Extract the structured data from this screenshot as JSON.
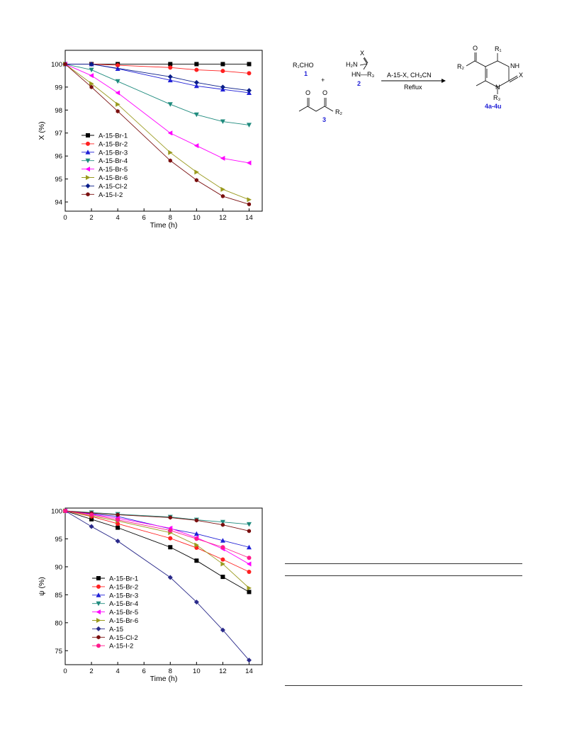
{
  "chart_data": [
    {
      "type": "line",
      "title": "",
      "xlabel": "Time (h)",
      "ylabel": "X (%)",
      "xlim": [
        0,
        15
      ],
      "ylim": [
        93.6,
        100.6
      ],
      "xticks": [
        0,
        2,
        4,
        6,
        8,
        10,
        12,
        14
      ],
      "yticks": [
        94,
        95,
        96,
        97,
        98,
        99,
        100
      ],
      "legend_position": "lower-left",
      "x": [
        0,
        2,
        4,
        8,
        10,
        12,
        14
      ],
      "series": [
        {
          "name": "A-15-Br-1",
          "color": "#000000",
          "marker": "square",
          "x": [
            0,
            2,
            4,
            8,
            10,
            12,
            14
          ],
          "values": [
            100,
            100,
            100,
            100,
            100,
            100,
            100
          ]
        },
        {
          "name": "A-15-Br-2",
          "color": "#ff2020",
          "marker": "circle",
          "x": [
            0,
            2,
            4,
            8,
            10,
            12,
            14
          ],
          "values": [
            100,
            100,
            99.95,
            99.85,
            99.75,
            99.7,
            99.6
          ]
        },
        {
          "name": "A-15-Br-3",
          "color": "#1f1fd6",
          "marker": "triangle-up",
          "x": [
            0,
            2,
            4,
            8,
            10,
            12,
            14
          ],
          "values": [
            100,
            100,
            99.8,
            99.3,
            99.05,
            98.9,
            98.75
          ]
        },
        {
          "name": "A-15-Br-4",
          "color": "#1f8b7e",
          "marker": "triangle-down",
          "x": [
            0,
            2,
            4,
            8,
            10,
            12,
            14
          ],
          "values": [
            100,
            99.75,
            99.25,
            98.25,
            97.8,
            97.5,
            97.35
          ]
        },
        {
          "name": "A-15-Br-5",
          "color": "#ff00ff",
          "marker": "triangle-left",
          "x": [
            0,
            2,
            4,
            8,
            10,
            12,
            14
          ],
          "values": [
            100,
            99.5,
            98.75,
            97.0,
            96.45,
            95.9,
            95.7
          ]
        },
        {
          "name": "A-15-Br-6",
          "color": "#9a9a1e",
          "marker": "triangle-right",
          "x": [
            0,
            2,
            4,
            8,
            10,
            12,
            14
          ],
          "values": [
            100,
            99.15,
            98.25,
            96.15,
            95.3,
            94.55,
            94.1
          ]
        },
        {
          "name": "A-15-Cl-2",
          "color": "#0a1e8a",
          "marker": "diamond",
          "x": [
            0,
            2,
            8,
            10,
            12,
            14
          ],
          "values": [
            100,
            100,
            99.45,
            99.2,
            99.0,
            98.85
          ]
        },
        {
          "name": "A-15-I-2",
          "color": "#7a0f0f",
          "marker": "hexagon",
          "x": [
            0,
            2,
            4,
            8,
            10,
            12,
            14
          ],
          "values": [
            100,
            99.0,
            97.95,
            95.8,
            94.95,
            94.25,
            93.9
          ]
        }
      ]
    },
    {
      "type": "line",
      "title": "",
      "xlabel": "Time (h)",
      "ylabel": "ψ (%)",
      "xlim": [
        0,
        15
      ],
      "ylim": [
        72.5,
        100.5
      ],
      "xticks": [
        0,
        2,
        4,
        6,
        8,
        10,
        12,
        14
      ],
      "yticks": [
        75,
        80,
        85,
        90,
        95,
        100
      ],
      "legend_position": "lower-left",
      "x": [
        0,
        2,
        4,
        8,
        10,
        12,
        14
      ],
      "series": [
        {
          "name": "A-15-Br-1",
          "color": "#000000",
          "marker": "square",
          "x": [
            0,
            2,
            4,
            8,
            10,
            12,
            14
          ],
          "values": [
            100,
            98.5,
            97.0,
            93.5,
            91.1,
            88.2,
            85.5
          ]
        },
        {
          "name": "A-15-Br-2",
          "color": "#ff2020",
          "marker": "circle",
          "x": [
            0,
            2,
            4,
            8,
            10,
            12,
            14
          ],
          "values": [
            100,
            99.0,
            97.7,
            95.1,
            93.4,
            91.3,
            89.1
          ]
        },
        {
          "name": "A-15-Br-3",
          "color": "#1f1fd6",
          "marker": "triangle-up",
          "x": [
            0,
            2,
            4,
            8,
            10,
            12,
            14
          ],
          "values": [
            100,
            99.5,
            99.0,
            96.8,
            95.9,
            94.7,
            93.5
          ]
        },
        {
          "name": "A-15-Br-4",
          "color": "#1f8b7e",
          "marker": "triangle-down",
          "x": [
            0,
            2,
            4,
            8,
            10,
            12,
            14
          ],
          "values": [
            100,
            99.7,
            99.4,
            98.9,
            98.4,
            98.0,
            97.6
          ]
        },
        {
          "name": "A-15-Br-5",
          "color": "#ff00ff",
          "marker": "triangle-left",
          "x": [
            0,
            2,
            4,
            8,
            10,
            12,
            14
          ],
          "values": [
            100,
            99.4,
            98.7,
            96.9,
            95.2,
            93.2,
            90.5
          ]
        },
        {
          "name": "A-15-Br-6",
          "color": "#9a9a1e",
          "marker": "triangle-right",
          "x": [
            0,
            2,
            4,
            8,
            10,
            12,
            14
          ],
          "values": [
            100,
            99.1,
            98.2,
            96.1,
            93.9,
            90.5,
            86.2
          ]
        },
        {
          "name": "A-15",
          "color": "#2a2a8a",
          "marker": "diamond",
          "x": [
            0,
            2,
            4,
            8,
            10,
            12,
            14
          ],
          "values": [
            100,
            97.2,
            94.6,
            88.1,
            83.7,
            78.7,
            73.3
          ]
        },
        {
          "name": "A-15-Cl-2",
          "color": "#7a0f0f",
          "marker": "hexagon",
          "x": [
            0,
            2,
            4,
            8,
            10,
            12,
            14
          ],
          "values": [
            100,
            99.6,
            99.3,
            98.8,
            98.3,
            97.5,
            96.4
          ]
        },
        {
          "name": "A-15-I-2",
          "color": "#ff1a8c",
          "marker": "circle",
          "x": [
            0,
            2,
            4,
            8,
            10,
            12,
            14
          ],
          "values": [
            100,
            99.3,
            98.4,
            96.5,
            95.0,
            93.5,
            91.6
          ]
        }
      ]
    }
  ],
  "scheme": {
    "aldehyde": "R₁CHO",
    "label_1": "1",
    "plus": "+",
    "thio_X": "X",
    "thio_H2N": "H₂N",
    "thio_HN_R3": "HN—R₃",
    "label_2": "2",
    "ketone_R2": "R₂",
    "ketone_O_left": "O",
    "ketone_O_right": "O",
    "label_3": "3",
    "arrow_top": "A-15-X, CH₃CN",
    "arrow_bottom": "Reflux",
    "product_O": "O",
    "product_R1": "R₁",
    "product_NH": "NH",
    "product_R2": "R₂",
    "product_X": "X",
    "product_N": "N",
    "product_R3": "R₃",
    "product_label": "4a-4u"
  }
}
